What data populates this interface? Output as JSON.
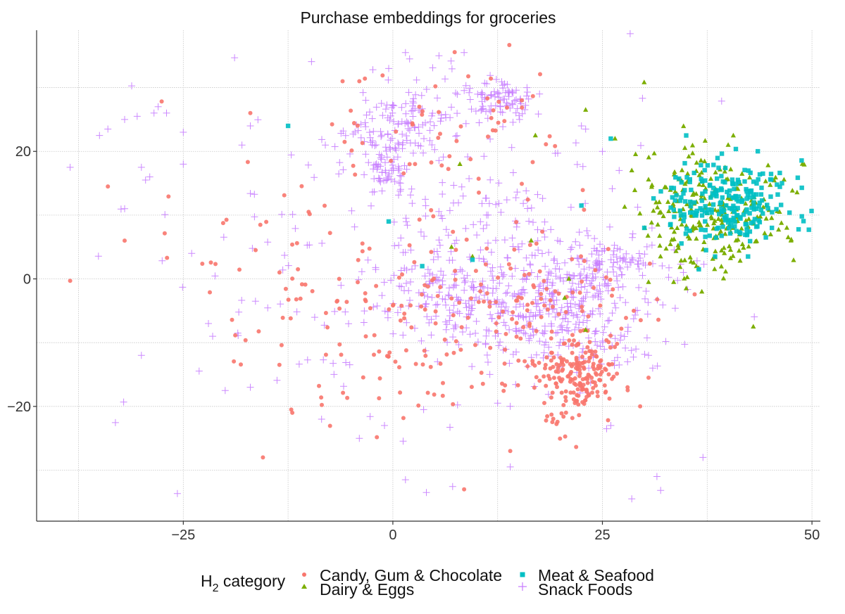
{
  "chart_data": {
    "type": "scatter",
    "title": "Purchase embeddings for groceries",
    "xlabel": "",
    "ylabel": "",
    "xlim": [
      -42.5,
      51
    ],
    "ylim": [
      -38,
      39
    ],
    "xticks": [
      -25,
      0,
      25,
      50
    ],
    "xtick_labels": [
      "−25",
      "0",
      "25",
      "50"
    ],
    "yticks": [
      -20,
      0,
      20
    ],
    "ytick_labels": [
      "−20",
      "0",
      "20"
    ],
    "minor_xticks": [
      -37.5,
      -12.5,
      12.5,
      37.5
    ],
    "minor_yticks": [
      -30,
      -10,
      10,
      30
    ],
    "grid": true,
    "legend": {
      "title": "H2 category",
      "title_main": "H",
      "title_sub": "2",
      "title_rest": " category",
      "placement": "bottom"
    },
    "series": [
      {
        "name": "Candy, Gum & Chocolate",
        "marker": "circle",
        "color": "#F8766D",
        "clusters": [
          {
            "cx": 22,
            "cy": -15,
            "sx": 2.2,
            "sy": 2.8,
            "n": 170
          },
          {
            "cx": 20,
            "cy": -6,
            "sx": 6,
            "sy": 6,
            "n": 90
          },
          {
            "cx": 8,
            "cy": -4,
            "sx": 8,
            "sy": 6,
            "n": 80
          },
          {
            "cx": -3,
            "cy": -10,
            "sx": 8,
            "sy": 8,
            "n": 70
          },
          {
            "cx": 6,
            "cy": 24,
            "sx": 7,
            "sy": 5,
            "n": 60
          },
          {
            "cx": -15,
            "cy": 2,
            "sx": 6,
            "sy": 8,
            "n": 25
          },
          {
            "cx": 20,
            "cy": -22,
            "sx": 1,
            "sy": 1.5,
            "n": 12
          }
        ],
        "points": [
          [
            -38.5,
            -0.3
          ],
          [
            -34,
            14.5
          ],
          [
            -32,
            6
          ],
          [
            -17,
            26
          ],
          [
            -15.5,
            -28
          ],
          [
            -12,
            -21
          ],
          [
            8.5,
            -33
          ],
          [
            14,
            -27
          ],
          [
            28,
            -17
          ],
          [
            29.5,
            -20
          ],
          [
            30.5,
            -15.5
          ],
          [
            -6,
            31
          ],
          [
            -4,
            31
          ]
        ]
      },
      {
        "name": "Dairy & Eggs",
        "marker": "triangle",
        "color": "#7CAE00",
        "clusters": [
          {
            "cx": 39,
            "cy": 10,
            "sx": 4,
            "sy": 4,
            "n": 180
          },
          {
            "cx": 34,
            "cy": 12,
            "sx": 3,
            "sy": 6,
            "n": 60
          }
        ],
        "points": [
          [
            23,
            26.5
          ],
          [
            26.5,
            22
          ],
          [
            8,
            18
          ],
          [
            17,
            22.5
          ],
          [
            16.5,
            6
          ],
          [
            7,
            5
          ],
          [
            9.5,
            3.5
          ],
          [
            21,
            0
          ],
          [
            20.5,
            -3
          ],
          [
            23,
            -8
          ],
          [
            43,
            -7.5
          ],
          [
            35,
            -1.5
          ],
          [
            33.5,
            -0.5
          ],
          [
            30.5,
            -0.5
          ],
          [
            28.5,
            17
          ],
          [
            47.5,
            6
          ],
          [
            47,
            8
          ],
          [
            40,
            21
          ]
        ]
      },
      {
        "name": "Meat & Seafood",
        "marker": "square",
        "color": "#00BFC4",
        "clusters": [
          {
            "cx": 40,
            "cy": 12,
            "sx": 3.5,
            "sy": 3.2,
            "n": 230
          }
        ],
        "points": [
          [
            -12.5,
            24
          ],
          [
            26,
            22
          ],
          [
            -0.5,
            9
          ],
          [
            3.5,
            2
          ],
          [
            9.5,
            3
          ],
          [
            22.5,
            11.5
          ],
          [
            30,
            8
          ],
          [
            36.5,
            1.5
          ],
          [
            35,
            22.5
          ],
          [
            44.5,
            6.5
          ]
        ]
      },
      {
        "name": "Snack Foods",
        "marker": "plus",
        "color": "#C77CFF",
        "clusters": [
          {
            "cx": 20,
            "cy": -5,
            "sx": 6,
            "sy": 4.5,
            "n": 330
          },
          {
            "cx": 8,
            "cy": -2,
            "sx": 6,
            "sy": 4,
            "n": 150
          },
          {
            "cx": 3,
            "cy": 26,
            "sx": 3,
            "sy": 3,
            "n": 90
          },
          {
            "cx": 13,
            "cy": 28,
            "sx": 1.8,
            "sy": 1.3,
            "n": 80
          },
          {
            "cx": -1,
            "cy": 17,
            "sx": 1.4,
            "sy": 1.8,
            "n": 50
          },
          {
            "cx": -2,
            "cy": 21,
            "sx": 2.5,
            "sy": 2,
            "n": 40
          },
          {
            "cx": 25,
            "cy": 3,
            "sx": 4,
            "sy": 2,
            "n": 90
          },
          {
            "cx": 0,
            "cy": 5,
            "sx": 15,
            "sy": 15,
            "n": 170
          },
          {
            "cx": 10,
            "cy": 10,
            "sx": 5,
            "sy": 4,
            "n": 60
          }
        ],
        "points": [
          [
            -38.5,
            17.5
          ],
          [
            -35,
            22.5
          ],
          [
            -34,
            23.5
          ],
          [
            -32,
            25
          ],
          [
            -30.5,
            25.5
          ],
          [
            -30,
            17.5
          ],
          [
            -29.5,
            15.5
          ],
          [
            -28.5,
            26
          ],
          [
            -28,
            27
          ],
          [
            -27,
            26
          ],
          [
            -25,
            23
          ],
          [
            -25,
            18
          ],
          [
            -32,
            11
          ],
          [
            -29,
            16
          ],
          [
            -30,
            -12
          ],
          [
            -24,
            4
          ],
          [
            -22,
            -7
          ],
          [
            -21.5,
            -9
          ],
          [
            -20,
            -17.5
          ],
          [
            -18.5,
            -8.5
          ],
          [
            -17,
            -17
          ],
          [
            -18,
            21
          ],
          [
            -17,
            24
          ],
          [
            -8.5,
            -22
          ],
          [
            -4,
            -25
          ],
          [
            -1,
            -23
          ],
          [
            1.5,
            -31.5
          ],
          [
            4,
            -33.5
          ],
          [
            14,
            -29.5
          ],
          [
            28.5,
            -34.5
          ],
          [
            31.5,
            -31
          ],
          [
            37,
            -28
          ],
          [
            26,
            -23
          ],
          [
            25.5,
            -23.5
          ],
          [
            12.5,
            -19.5
          ],
          [
            14,
            -20
          ],
          [
            27,
            -13.5
          ],
          [
            28,
            -13
          ],
          [
            31,
            -14
          ],
          [
            29,
            -11
          ],
          [
            30.5,
            -12
          ],
          [
            1.5,
            35.5
          ],
          [
            2,
            34.5
          ],
          [
            5.5,
            35
          ],
          [
            8.5,
            35.5
          ],
          [
            16,
            30
          ],
          [
            17.5,
            29
          ],
          [
            23,
            23.5
          ],
          [
            22.5,
            24
          ],
          [
            25,
            20
          ],
          [
            27,
            17
          ],
          [
            -0.5,
            33
          ]
        ]
      }
    ]
  }
}
